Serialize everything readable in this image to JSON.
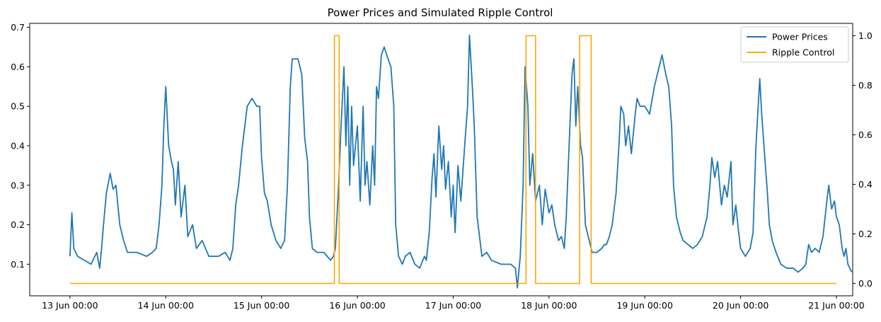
{
  "chart_data": {
    "type": "line",
    "title": "Power Prices and Simulated Ripple Control",
    "xlabel": "",
    "ylabel": "",
    "ylabel_right": "",
    "x_ticks": [
      "13 Jun 00:00",
      "14 Jun 00:00",
      "15 Jun 00:00",
      "16 Jun 00:00",
      "17 Jun 00:00",
      "18 Jun 00:00",
      "19 Jun 00:00",
      "20 Jun 00:00",
      "21 Jun 00:00"
    ],
    "x_range_days": [
      12.58,
      21.17
    ],
    "y_left": {
      "ticks": [
        "0.1",
        "0.2",
        "0.3",
        "0.4",
        "0.5",
        "0.6",
        "0.7"
      ],
      "range": [
        0.02,
        0.71
      ]
    },
    "y_right": {
      "ticks": [
        "0.0",
        "0.2",
        "0.4",
        "0.6",
        "0.8",
        "1.0"
      ],
      "range": [
        -0.05,
        1.05
      ]
    },
    "legend_position": "top-right",
    "grid": false,
    "series": [
      {
        "name": "Power Prices",
        "axis": "left",
        "color": "#1f77b4",
        "points": [
          [
            13.0,
            0.12
          ],
          [
            13.02,
            0.23
          ],
          [
            13.04,
            0.14
          ],
          [
            13.08,
            0.12
          ],
          [
            13.15,
            0.11
          ],
          [
            13.22,
            0.1
          ],
          [
            13.28,
            0.13
          ],
          [
            13.31,
            0.09
          ],
          [
            13.33,
            0.14
          ],
          [
            13.35,
            0.2
          ],
          [
            13.38,
            0.28
          ],
          [
            13.42,
            0.33
          ],
          [
            13.45,
            0.29
          ],
          [
            13.48,
            0.3
          ],
          [
            13.52,
            0.2
          ],
          [
            13.56,
            0.16
          ],
          [
            13.6,
            0.13
          ],
          [
            13.7,
            0.13
          ],
          [
            13.8,
            0.12
          ],
          [
            13.86,
            0.13
          ],
          [
            13.9,
            0.14
          ],
          [
            13.93,
            0.2
          ],
          [
            13.96,
            0.3
          ],
          [
            13.98,
            0.45
          ],
          [
            14.0,
            0.55
          ],
          [
            14.03,
            0.4
          ],
          [
            14.06,
            0.36
          ],
          [
            14.08,
            0.34
          ],
          [
            14.1,
            0.25
          ],
          [
            14.13,
            0.36
          ],
          [
            14.16,
            0.22
          ],
          [
            14.2,
            0.3
          ],
          [
            14.23,
            0.17
          ],
          [
            14.28,
            0.2
          ],
          [
            14.32,
            0.14
          ],
          [
            14.38,
            0.16
          ],
          [
            14.45,
            0.12
          ],
          [
            14.55,
            0.12
          ],
          [
            14.62,
            0.13
          ],
          [
            14.67,
            0.11
          ],
          [
            14.7,
            0.14
          ],
          [
            14.73,
            0.25
          ],
          [
            14.76,
            0.3
          ],
          [
            14.8,
            0.4
          ],
          [
            14.85,
            0.5
          ],
          [
            14.9,
            0.52
          ],
          [
            14.95,
            0.5
          ],
          [
            14.98,
            0.5
          ],
          [
            15.0,
            0.37
          ],
          [
            15.03,
            0.28
          ],
          [
            15.06,
            0.26
          ],
          [
            15.1,
            0.2
          ],
          [
            15.15,
            0.16
          ],
          [
            15.2,
            0.14
          ],
          [
            15.24,
            0.16
          ],
          [
            15.27,
            0.3
          ],
          [
            15.3,
            0.55
          ],
          [
            15.32,
            0.62
          ],
          [
            15.38,
            0.62
          ],
          [
            15.42,
            0.58
          ],
          [
            15.45,
            0.42
          ],
          [
            15.48,
            0.36
          ],
          [
            15.5,
            0.22
          ],
          [
            15.53,
            0.14
          ],
          [
            15.58,
            0.13
          ],
          [
            15.65,
            0.13
          ],
          [
            15.72,
            0.11
          ],
          [
            15.75,
            0.12
          ],
          [
            15.77,
            0.14
          ],
          [
            15.8,
            0.28
          ],
          [
            15.83,
            0.45
          ],
          [
            15.86,
            0.6
          ],
          [
            15.88,
            0.4
          ],
          [
            15.9,
            0.55
          ],
          [
            15.92,
            0.3
          ],
          [
            15.94,
            0.5
          ],
          [
            15.96,
            0.35
          ],
          [
            16.0,
            0.45
          ],
          [
            16.03,
            0.26
          ],
          [
            16.06,
            0.5
          ],
          [
            16.08,
            0.3
          ],
          [
            16.1,
            0.36
          ],
          [
            16.13,
            0.25
          ],
          [
            16.16,
            0.4
          ],
          [
            16.18,
            0.3
          ],
          [
            16.2,
            0.55
          ],
          [
            16.22,
            0.52
          ],
          [
            16.25,
            0.63
          ],
          [
            16.28,
            0.65
          ],
          [
            16.32,
            0.62
          ],
          [
            16.35,
            0.6
          ],
          [
            16.38,
            0.5
          ],
          [
            16.4,
            0.2
          ],
          [
            16.43,
            0.12
          ],
          [
            16.47,
            0.1
          ],
          [
            16.5,
            0.12
          ],
          [
            16.55,
            0.13
          ],
          [
            16.6,
            0.1
          ],
          [
            16.65,
            0.09
          ],
          [
            16.7,
            0.12
          ],
          [
            16.72,
            0.11
          ],
          [
            16.75,
            0.18
          ],
          [
            16.78,
            0.32
          ],
          [
            16.8,
            0.38
          ],
          [
            16.82,
            0.27
          ],
          [
            16.85,
            0.45
          ],
          [
            16.88,
            0.34
          ],
          [
            16.9,
            0.4
          ],
          [
            16.92,
            0.29
          ],
          [
            16.95,
            0.36
          ],
          [
            16.98,
            0.22
          ],
          [
            17.0,
            0.3
          ],
          [
            17.02,
            0.18
          ],
          [
            17.05,
            0.35
          ],
          [
            17.08,
            0.26
          ],
          [
            17.1,
            0.33
          ],
          [
            17.12,
            0.4
          ],
          [
            17.15,
            0.5
          ],
          [
            17.17,
            0.68
          ],
          [
            17.2,
            0.55
          ],
          [
            17.22,
            0.45
          ],
          [
            17.25,
            0.22
          ],
          [
            17.28,
            0.16
          ],
          [
            17.3,
            0.12
          ],
          [
            17.35,
            0.13
          ],
          [
            17.4,
            0.11
          ],
          [
            17.5,
            0.1
          ],
          [
            17.6,
            0.1
          ],
          [
            17.65,
            0.09
          ],
          [
            17.67,
            0.04
          ],
          [
            17.7,
            0.12
          ],
          [
            17.73,
            0.3
          ],
          [
            17.75,
            0.6
          ],
          [
            17.78,
            0.5
          ],
          [
            17.8,
            0.3
          ],
          [
            17.83,
            0.38
          ],
          [
            17.86,
            0.26
          ],
          [
            17.9,
            0.3
          ],
          [
            17.93,
            0.2
          ],
          [
            17.96,
            0.29
          ],
          [
            18.0,
            0.23
          ],
          [
            18.03,
            0.25
          ],
          [
            18.06,
            0.2
          ],
          [
            18.1,
            0.16
          ],
          [
            18.13,
            0.17
          ],
          [
            18.16,
            0.14
          ],
          [
            18.18,
            0.22
          ],
          [
            18.21,
            0.4
          ],
          [
            18.24,
            0.58
          ],
          [
            18.26,
            0.62
          ],
          [
            18.28,
            0.45
          ],
          [
            18.3,
            0.55
          ],
          [
            18.33,
            0.4
          ],
          [
            18.35,
            0.37
          ],
          [
            18.38,
            0.2
          ],
          [
            18.42,
            0.16
          ],
          [
            18.45,
            0.13
          ],
          [
            18.5,
            0.13
          ],
          [
            18.55,
            0.14
          ],
          [
            18.58,
            0.15
          ],
          [
            18.6,
            0.15
          ],
          [
            18.63,
            0.17
          ],
          [
            18.66,
            0.2
          ],
          [
            18.7,
            0.28
          ],
          [
            18.73,
            0.4
          ],
          [
            18.75,
            0.5
          ],
          [
            18.78,
            0.48
          ],
          [
            18.8,
            0.4
          ],
          [
            18.83,
            0.45
          ],
          [
            18.86,
            0.38
          ],
          [
            18.9,
            0.48
          ],
          [
            18.92,
            0.52
          ],
          [
            18.95,
            0.5
          ],
          [
            19.0,
            0.5
          ],
          [
            19.05,
            0.48
          ],
          [
            19.1,
            0.55
          ],
          [
            19.15,
            0.6
          ],
          [
            19.18,
            0.63
          ],
          [
            19.22,
            0.58
          ],
          [
            19.25,
            0.55
          ],
          [
            19.28,
            0.45
          ],
          [
            19.3,
            0.3
          ],
          [
            19.33,
            0.22
          ],
          [
            19.37,
            0.18
          ],
          [
            19.4,
            0.16
          ],
          [
            19.45,
            0.15
          ],
          [
            19.5,
            0.14
          ],
          [
            19.55,
            0.15
          ],
          [
            19.6,
            0.17
          ],
          [
            19.65,
            0.22
          ],
          [
            19.68,
            0.3
          ],
          [
            19.7,
            0.37
          ],
          [
            19.73,
            0.32
          ],
          [
            19.76,
            0.36
          ],
          [
            19.8,
            0.25
          ],
          [
            19.83,
            0.3
          ],
          [
            19.86,
            0.27
          ],
          [
            19.9,
            0.36
          ],
          [
            19.92,
            0.2
          ],
          [
            19.95,
            0.25
          ],
          [
            19.98,
            0.18
          ],
          [
            20.0,
            0.14
          ],
          [
            20.05,
            0.12
          ],
          [
            20.1,
            0.14
          ],
          [
            20.13,
            0.18
          ],
          [
            20.16,
            0.4
          ],
          [
            20.2,
            0.57
          ],
          [
            20.22,
            0.48
          ],
          [
            20.25,
            0.38
          ],
          [
            20.28,
            0.28
          ],
          [
            20.3,
            0.2
          ],
          [
            20.33,
            0.16
          ],
          [
            20.37,
            0.13
          ],
          [
            20.42,
            0.1
          ],
          [
            20.48,
            0.09
          ],
          [
            20.55,
            0.09
          ],
          [
            20.6,
            0.08
          ],
          [
            20.65,
            0.09
          ],
          [
            20.68,
            0.1
          ],
          [
            20.71,
            0.15
          ],
          [
            20.74,
            0.13
          ],
          [
            20.78,
            0.14
          ],
          [
            20.82,
            0.13
          ],
          [
            20.86,
            0.17
          ],
          [
            20.9,
            0.26
          ],
          [
            20.92,
            0.3
          ],
          [
            20.95,
            0.24
          ],
          [
            20.98,
            0.26
          ],
          [
            21.0,
            0.22
          ],
          [
            21.03,
            0.2
          ],
          [
            21.06,
            0.14
          ],
          [
            21.08,
            0.12
          ],
          [
            21.1,
            0.14
          ],
          [
            21.12,
            0.1
          ],
          [
            21.14,
            0.09
          ],
          [
            21.16,
            0.08
          ]
        ]
      },
      {
        "name": "Ripple Control",
        "axis": "right",
        "color": "#ffa500",
        "points": [
          [
            13.0,
            0
          ],
          [
            15.76,
            0
          ],
          [
            15.76,
            1
          ],
          [
            15.81,
            1
          ],
          [
            15.81,
            0
          ],
          [
            17.76,
            0
          ],
          [
            17.76,
            1
          ],
          [
            17.86,
            1
          ],
          [
            17.86,
            0
          ],
          [
            18.32,
            0
          ],
          [
            18.32,
            1
          ],
          [
            18.44,
            1
          ],
          [
            18.44,
            0
          ],
          [
            21.0,
            0
          ]
        ]
      }
    ]
  }
}
